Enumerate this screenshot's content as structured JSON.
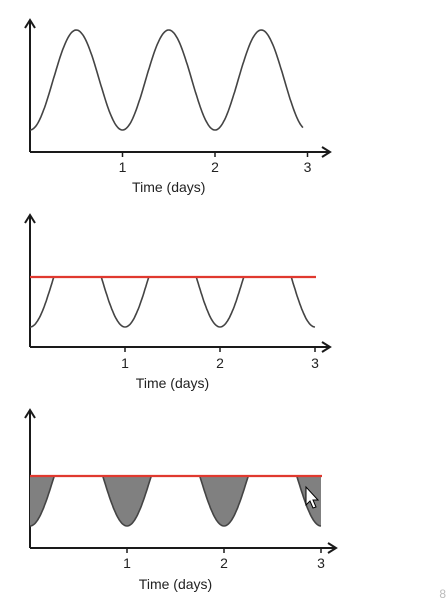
{
  "colors": {
    "axis": "#1a1a1a",
    "curve": "#444444",
    "threshold": "#e0392f",
    "shade": "#808080"
  },
  "chart_data": [
    {
      "type": "line",
      "xlabel": "Time (days)",
      "ylabel": "",
      "xticks": [
        "1",
        "2",
        "3"
      ],
      "xlim": [
        0,
        3
      ],
      "ylim": [
        -1.2,
        1.3
      ],
      "series": [
        {
          "function": "sinusoid",
          "period_days": 1,
          "x_range": [
            0,
            2.95
          ]
        }
      ],
      "threshold": null,
      "shaded": false
    },
    {
      "type": "line",
      "xlabel": "Time (days)",
      "ylabel": "",
      "xticks": [
        "1",
        "2",
        "3"
      ],
      "xlim": [
        0,
        3
      ],
      "ylim": [
        -1.2,
        1.3
      ],
      "series": [
        {
          "function": "sinusoid",
          "period_days": 1,
          "x_range": [
            0,
            3.0
          ]
        }
      ],
      "threshold": 0.0,
      "shaded": false
    },
    {
      "type": "area",
      "xlabel": "Time (days)",
      "ylabel": "",
      "xticks": [
        "1",
        "2",
        "3"
      ],
      "xlim": [
        0,
        3
      ],
      "ylim": [
        -1.2,
        1.3
      ],
      "series": [
        {
          "function": "sinusoid",
          "period_days": 1,
          "x_range": [
            0,
            3.0
          ]
        }
      ],
      "threshold": 0.0,
      "shaded": true
    }
  ],
  "cursor": "arrow-cursor-icon",
  "corner_mark": "8"
}
